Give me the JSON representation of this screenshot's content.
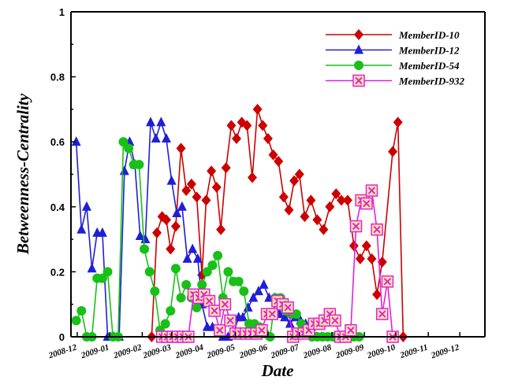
{
  "chart_data": {
    "type": "line",
    "xlabel": "Date",
    "ylabel": "Betweenness-Centrality",
    "xlim": [
      "2008-11-25",
      "2009-12-25"
    ],
    "ylim": [
      0,
      1
    ],
    "xtick_labels": [
      "2008-12",
      "2009-01",
      "2009-02",
      "2009-03",
      "2009-04",
      "2009-05",
      "2009-06",
      "2009-07",
      "2009-08",
      "2009-09",
      "2009-10",
      "2009-11",
      "2009-12"
    ],
    "ytick_labels": [
      "0",
      "0.2",
      "0.4",
      "0.6",
      "0.8",
      "1"
    ],
    "grid": false,
    "legend_position": "top-right",
    "series": [
      {
        "name": "MemberID-10",
        "color": "#cc0000",
        "marker": "diamond",
        "points": [
          [
            "2009-02-10",
            0
          ],
          [
            "2009-02-15",
            0.32
          ],
          [
            "2009-02-20",
            0.37
          ],
          [
            "2009-02-24",
            0.36
          ],
          [
            "2009-02-28",
            0.27
          ],
          [
            "2009-03-05",
            0.34
          ],
          [
            "2009-03-10",
            0.58
          ],
          [
            "2009-03-15",
            0.45
          ],
          [
            "2009-03-20",
            0.47
          ],
          [
            "2009-03-25",
            0.43
          ],
          [
            "2009-03-30",
            0.19
          ],
          [
            "2009-04-03",
            0.42
          ],
          [
            "2009-04-08",
            0.51
          ],
          [
            "2009-04-13",
            0.46
          ],
          [
            "2009-04-17",
            0.33
          ],
          [
            "2009-04-22",
            0.52
          ],
          [
            "2009-04-27",
            0.65
          ],
          [
            "2009-05-02",
            0.61
          ],
          [
            "2009-05-07",
            0.66
          ],
          [
            "2009-05-12",
            0.65
          ],
          [
            "2009-05-17",
            0.49
          ],
          [
            "2009-05-22",
            0.7
          ],
          [
            "2009-05-27",
            0.65
          ],
          [
            "2009-06-01",
            0.61
          ],
          [
            "2009-06-06",
            0.56
          ],
          [
            "2009-06-11",
            0.54
          ],
          [
            "2009-06-16",
            0.43
          ],
          [
            "2009-06-21",
            0.39
          ],
          [
            "2009-06-26",
            0.48
          ],
          [
            "2009-07-01",
            0.5
          ],
          [
            "2009-07-06",
            0.37
          ],
          [
            "2009-07-12",
            0.42
          ],
          [
            "2009-07-18",
            0.36
          ],
          [
            "2009-07-24",
            0.33
          ],
          [
            "2009-07-30",
            0.4
          ],
          [
            "2009-08-05",
            0.44
          ],
          [
            "2009-08-10",
            0.42
          ],
          [
            "2009-08-16",
            0.42
          ],
          [
            "2009-08-22",
            0.28
          ],
          [
            "2009-08-28",
            0.24
          ],
          [
            "2009-09-03",
            0.28
          ],
          [
            "2009-09-08",
            0.24
          ],
          [
            "2009-09-13",
            0.13
          ],
          [
            "2009-09-18",
            0.23
          ],
          [
            "2009-09-28",
            0.57
          ],
          [
            "2009-10-03",
            0.66
          ],
          [
            "2009-10-08",
            0
          ]
        ]
      },
      {
        "name": "MemberID-12",
        "color": "#1f1fd6",
        "marker": "triangle",
        "points": [
          [
            "2008-11-30",
            0.6
          ],
          [
            "2008-12-05",
            0.33
          ],
          [
            "2008-12-10",
            0.4
          ],
          [
            "2008-12-15",
            0.21
          ],
          [
            "2008-12-20",
            0.32
          ],
          [
            "2008-12-25",
            0.32
          ],
          [
            "2008-12-30",
            0
          ],
          [
            "2009-01-05",
            0
          ],
          [
            "2009-01-10",
            0
          ],
          [
            "2009-01-15",
            0.51
          ],
          [
            "2009-01-20",
            0.6
          ],
          [
            "2009-01-25",
            0.53
          ],
          [
            "2009-01-30",
            0.31
          ],
          [
            "2009-02-04",
            0.3
          ],
          [
            "2009-02-09",
            0.66
          ],
          [
            "2009-02-14",
            0.61
          ],
          [
            "2009-02-19",
            0.66
          ],
          [
            "2009-02-24",
            0.61
          ],
          [
            "2009-03-01",
            0.48
          ],
          [
            "2009-03-06",
            0.38
          ],
          [
            "2009-03-11",
            0.4
          ],
          [
            "2009-03-16",
            0.24
          ],
          [
            "2009-03-21",
            0.27
          ],
          [
            "2009-03-26",
            0.24
          ],
          [
            "2009-03-30",
            0.1
          ],
          [
            "2009-04-04",
            0.03
          ],
          [
            "2009-04-09",
            0.03
          ],
          [
            "2009-04-14",
            0.01
          ],
          [
            "2009-04-19",
            0
          ],
          [
            "2009-04-24",
            0
          ],
          [
            "2009-04-29",
            0.01
          ],
          [
            "2009-05-04",
            0.06
          ],
          [
            "2009-05-08",
            0.06
          ],
          [
            "2009-05-13",
            0.09
          ],
          [
            "2009-05-18",
            0.12
          ],
          [
            "2009-05-23",
            0.14
          ],
          [
            "2009-05-28",
            0.16
          ],
          [
            "2009-06-02",
            0.12
          ],
          [
            "2009-06-07",
            0.12
          ],
          [
            "2009-06-12",
            0.07
          ],
          [
            "2009-06-17",
            0.06
          ],
          [
            "2009-06-22",
            0.04
          ],
          [
            "2009-06-27",
            0.06
          ],
          [
            "2009-07-02",
            0.05
          ],
          [
            "2009-07-07",
            0.04
          ],
          [
            "2009-07-12",
            0.03
          ],
          [
            "2009-07-17",
            0
          ],
          [
            "2009-07-22",
            0
          ]
        ]
      },
      {
        "name": "MemberID-54",
        "color": "#18c018",
        "marker": "circle",
        "points": [
          [
            "2008-11-30",
            0.05
          ],
          [
            "2008-12-05",
            0.08
          ],
          [
            "2008-12-10",
            0
          ],
          [
            "2008-12-15",
            0
          ],
          [
            "2008-12-20",
            0.18
          ],
          [
            "2008-12-25",
            0.18
          ],
          [
            "2008-12-30",
            0.2
          ],
          [
            "2009-01-04",
            0
          ],
          [
            "2009-01-09",
            0
          ],
          [
            "2009-01-14",
            0.6
          ],
          [
            "2009-01-19",
            0.58
          ],
          [
            "2009-01-24",
            0.53
          ],
          [
            "2009-01-29",
            0.53
          ],
          [
            "2009-02-03",
            0.27
          ],
          [
            "2009-02-08",
            0.2
          ],
          [
            "2009-02-13",
            0.14
          ],
          [
            "2009-02-18",
            0.02
          ],
          [
            "2009-02-23",
            0.04
          ],
          [
            "2009-02-28",
            0.08
          ],
          [
            "2009-03-05",
            0.21
          ],
          [
            "2009-03-10",
            0.12
          ],
          [
            "2009-03-15",
            0.16
          ],
          [
            "2009-03-20",
            0.12
          ],
          [
            "2009-03-25",
            0.09
          ],
          [
            "2009-03-30",
            0.16
          ],
          [
            "2009-04-04",
            0.2
          ],
          [
            "2009-04-09",
            0.22
          ],
          [
            "2009-04-14",
            0.25
          ],
          [
            "2009-04-19",
            0.12
          ],
          [
            "2009-04-24",
            0.2
          ],
          [
            "2009-04-29",
            0.17
          ],
          [
            "2009-05-04",
            0.17
          ],
          [
            "2009-05-09",
            0.14
          ],
          [
            "2009-05-14",
            0.04
          ],
          [
            "2009-05-19",
            0.04
          ],
          [
            "2009-05-24",
            0.03
          ],
          [
            "2009-05-29",
            0.01
          ],
          [
            "2009-06-03",
            0
          ],
          [
            "2009-06-08",
            0.12
          ],
          [
            "2009-06-13",
            0.12
          ],
          [
            "2009-06-18",
            0.08
          ],
          [
            "2009-06-23",
            0.07
          ],
          [
            "2009-06-28",
            0.07
          ],
          [
            "2009-07-03",
            0.04
          ],
          [
            "2009-07-08",
            0.01
          ],
          [
            "2009-07-13",
            0
          ],
          [
            "2009-07-18",
            0
          ],
          [
            "2009-07-23",
            0
          ],
          [
            "2009-07-28",
            0
          ],
          [
            "2009-08-02",
            0
          ],
          [
            "2009-08-07",
            0
          ],
          [
            "2009-08-12",
            0
          ],
          [
            "2009-08-17",
            0
          ],
          [
            "2009-08-22",
            0
          ],
          [
            "2009-08-27",
            0
          ]
        ]
      },
      {
        "name": "MemberID-932",
        "color": "#e020e0",
        "marker": "x-square",
        "points": [
          [
            "2009-02-20",
            0
          ],
          [
            "2009-02-25",
            0
          ],
          [
            "2009-03-02",
            0
          ],
          [
            "2009-03-07",
            0
          ],
          [
            "2009-03-12",
            0
          ],
          [
            "2009-03-17",
            0
          ],
          [
            "2009-03-22",
            0.13
          ],
          [
            "2009-03-27",
            0.12
          ],
          [
            "2009-04-01",
            0.13
          ],
          [
            "2009-04-06",
            0.11
          ],
          [
            "2009-04-11",
            0.08
          ],
          [
            "2009-04-16",
            0.02
          ],
          [
            "2009-04-21",
            0.1
          ],
          [
            "2009-04-26",
            0.05
          ],
          [
            "2009-05-01",
            0.01
          ],
          [
            "2009-05-06",
            0.01
          ],
          [
            "2009-05-11",
            0.01
          ],
          [
            "2009-05-16",
            0.01
          ],
          [
            "2009-05-21",
            0.01
          ],
          [
            "2009-05-26",
            0.02
          ],
          [
            "2009-05-31",
            0.07
          ],
          [
            "2009-06-05",
            0.07
          ],
          [
            "2009-06-10",
            0.11
          ],
          [
            "2009-06-15",
            0.1
          ],
          [
            "2009-06-20",
            0.09
          ],
          [
            "2009-06-25",
            0
          ],
          [
            "2009-06-30",
            0.01
          ],
          [
            "2009-07-05",
            0.01
          ],
          [
            "2009-07-10",
            0.02
          ],
          [
            "2009-07-15",
            0.04
          ],
          [
            "2009-07-20",
            0.04
          ],
          [
            "2009-07-25",
            0.05
          ],
          [
            "2009-07-30",
            0.07
          ],
          [
            "2009-08-04",
            0.05
          ],
          [
            "2009-08-09",
            0
          ],
          [
            "2009-08-14",
            0
          ],
          [
            "2009-08-19",
            0.02
          ],
          [
            "2009-08-24",
            0.34
          ],
          [
            "2009-08-29",
            0.42
          ],
          [
            "2009-09-03",
            0.41
          ],
          [
            "2009-09-08",
            0.45
          ],
          [
            "2009-09-13",
            0.33
          ],
          [
            "2009-09-18",
            0.07
          ],
          [
            "2009-09-23",
            0.17
          ],
          [
            "2009-09-28",
            0
          ]
        ]
      }
    ]
  }
}
